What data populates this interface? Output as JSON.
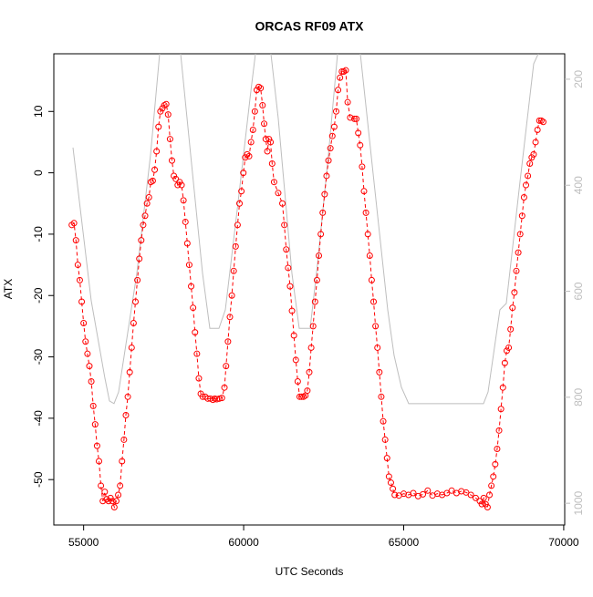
{
  "chart_data": {
    "type": "line",
    "title": "ORCAS RF09 ATX",
    "x_label": "UTC Seconds",
    "y_label": "ATX",
    "x": [
      54630,
      54700,
      54760,
      54820,
      54880,
      54940,
      55000,
      55060,
      55120,
      55180,
      55240,
      55300,
      55360,
      55420,
      55480,
      55540,
      55600,
      55660,
      55720,
      55780,
      55840,
      55900,
      55960,
      56020,
      56080,
      56140,
      56200,
      56260,
      56320,
      56380,
      56440,
      56500,
      56560,
      56620,
      56680,
      56740,
      56800,
      56860,
      56920,
      56980,
      57040,
      57100,
      57160,
      57220,
      57280,
      57340,
      57400,
      57460,
      57520,
      57580,
      57640,
      57700,
      57760,
      57820,
      57880,
      57940,
      58000,
      58060,
      58120,
      58180,
      58240,
      58300,
      58360,
      58420,
      58480,
      58540,
      58600,
      58660,
      58720,
      58800,
      58880,
      58960,
      59040,
      59100,
      59160,
      59240,
      59320,
      59400,
      59450,
      59510,
      59570,
      59630,
      59690,
      59750,
      59810,
      59870,
      59930,
      59990,
      60050,
      60110,
      60170,
      60230,
      60290,
      60350,
      60410,
      60470,
      60530,
      60590,
      60640,
      60690,
      60740,
      60790,
      60840,
      60890,
      60950,
      61080,
      61210,
      61270,
      61330,
      61390,
      61450,
      61510,
      61570,
      61630,
      61690,
      61750,
      61810,
      61870,
      61930,
      61990,
      62050,
      62110,
      62170,
      62230,
      62290,
      62350,
      62410,
      62470,
      62530,
      62590,
      62650,
      62710,
      62770,
      62830,
      62890,
      62950,
      63010,
      63070,
      63130,
      63190,
      63250,
      63330,
      63460,
      63520,
      63580,
      63640,
      63700,
      63760,
      63820,
      63880,
      63940,
      64000,
      64060,
      64120,
      64180,
      64240,
      64300,
      64360,
      64420,
      64480,
      64540,
      64600,
      64660,
      64720,
      64850,
      65000,
      65150,
      65300,
      65450,
      65600,
      65750,
      65900,
      66050,
      66200,
      66350,
      66500,
      66650,
      66800,
      66950,
      67100,
      67250,
      67380,
      67440,
      67500,
      67560,
      67620,
      67680,
      67740,
      67800,
      67860,
      67920,
      67980,
      68040,
      68100,
      68160,
      68220,
      68280,
      68340,
      68400,
      68460,
      68520,
      68580,
      68640,
      68700,
      68760,
      68820,
      68880,
      68940,
      69000,
      69060,
      69120,
      69180,
      69240,
      69300,
      69360
    ],
    "series": [
      {
        "color": "#ff0000",
        "markers": true,
        "values": [
          -8.5,
          -8.2,
          -11,
          -15,
          -17.5,
          -21,
          -24.5,
          -27.5,
          -29.5,
          -31.5,
          -34,
          -38,
          -41,
          -44.5,
          -47,
          -51,
          -53.5,
          -52,
          -53.2,
          -53.5,
          -53,
          -53.5,
          -54.5,
          -53.5,
          -52.5,
          -51,
          -47,
          -43.5,
          -39.5,
          -36.5,
          -32.5,
          -28.5,
          -24.5,
          -21,
          -17.5,
          -14,
          -11,
          -8.5,
          -7,
          -5,
          -4,
          -1.5,
          -1.3,
          0.5,
          3.5,
          7.5,
          10,
          10.5,
          11,
          11.2,
          9.5,
          5.5,
          2,
          -0.5,
          -1,
          -2,
          -1.5,
          -2,
          -4.5,
          -8,
          -11.5,
          -15,
          -18.5,
          -22,
          -26,
          -29.5,
          -33.5,
          -36,
          -36.5,
          -36.5,
          -36.8,
          -36.8,
          -37,
          -36.8,
          -36.9,
          -36.8,
          -36.7,
          -35,
          -31.5,
          -27.5,
          -23.5,
          -20,
          -16,
          -12,
          -8.5,
          -5,
          -3,
          0,
          2.5,
          3,
          2.7,
          5,
          7,
          10,
          13.5,
          14,
          13.8,
          11,
          8,
          5.5,
          3.5,
          5.5,
          5,
          1.5,
          -1.5,
          -3.3,
          -5,
          -8.5,
          -12.5,
          -15.5,
          -18.5,
          -22.5,
          -26.5,
          -30.5,
          -34,
          -36.5,
          -36.5,
          -36.5,
          -36.3,
          -35.5,
          -32.5,
          -28.5,
          -25,
          -21,
          -17.5,
          -13.5,
          -10,
          -6.5,
          -3.5,
          -0.5,
          2,
          4,
          6,
          7.5,
          10,
          13.5,
          15.5,
          16.5,
          16.5,
          16.7,
          11.5,
          9,
          8.8,
          8.8,
          6.5,
          4.5,
          1,
          -3,
          -6.5,
          -10,
          -13.5,
          -17.5,
          -21,
          -25,
          -28.5,
          -32.5,
          -36.5,
          -40.5,
          -43.5,
          -46.5,
          -49.5,
          -50.5,
          -51.5,
          -52.5,
          -52.6,
          -52.3,
          -52.5,
          -52.2,
          -52.7,
          -52.4,
          -51.8,
          -52.6,
          -52.3,
          -52.5,
          -52.2,
          -51.8,
          -52.2,
          -51.9,
          -52.1,
          -52.5,
          -53,
          -53.5,
          -54,
          -53,
          -54,
          -54.5,
          -52.5,
          -51,
          -49.5,
          -47.5,
          -45,
          -42,
          -38.5,
          -35,
          -31,
          -29,
          -28.5,
          -25.5,
          -22,
          -19.5,
          -16,
          -13,
          -10,
          -7,
          -4,
          -2,
          -0.5,
          1.5,
          2.5,
          3,
          5,
          7,
          8.5,
          8.5,
          8.3
        ]
      },
      {
        "color": "#bebebe",
        "axis": "y2",
        "markers": false,
        "x": [
          54668,
          55238,
          55665,
          55808,
          55950,
          56093,
          56663,
          57090,
          57375,
          57700,
          58031,
          58373,
          58715,
          58943,
          59228,
          59428,
          59799,
          60226,
          60368,
          60600,
          60852,
          61081,
          61508,
          61736,
          62078,
          62306,
          62648,
          62933,
          63300,
          63646,
          64073,
          64501,
          64700,
          64928,
          65156,
          67493,
          67636,
          68006,
          68206,
          68633,
          69061,
          69204
        ],
        "values": [
          329,
          618,
          764,
          807,
          812,
          790,
          566,
          343,
          152,
          null,
          152,
          360,
          566,
          670,
          670,
          635,
          446,
          222,
          152,
          null,
          152,
          274,
          566,
          670,
          670,
          549,
          343,
          152,
          null,
          152,
          394,
          635,
          721,
          781,
          812,
          812,
          790,
          635,
          623,
          394,
          171,
          152
        ]
      }
    ],
    "xlim": [
      54069,
      70031
    ],
    "xticks": [
      55000,
      60000,
      65000,
      70000
    ],
    "ylim": [
      -57.4,
      19.4
    ],
    "yticks": [
      -50,
      -40,
      -30,
      -20,
      -10,
      0,
      10
    ],
    "y2lim": [
      1041,
      152
    ],
    "y2ticks": [
      200,
      400,
      600,
      800,
      1000
    ]
  }
}
